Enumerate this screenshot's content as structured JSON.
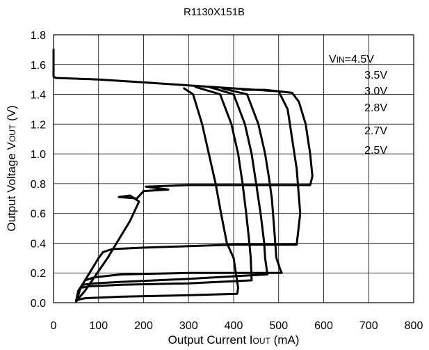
{
  "chart_data": {
    "type": "line",
    "title": "R1130X151B",
    "xlabel": "Output Current IOUT (mA)",
    "xlabel_main": "Output Current I",
    "xlabel_sub": "OUT",
    "xlabel_unit": " (mA)",
    "ylabel": "Output Voltage VOUT (V)",
    "ylabel_main": "Output Voltage V",
    "ylabel_sub": "OUT",
    "ylabel_unit": " (V)",
    "xlim": [
      0,
      800
    ],
    "ylim": [
      0,
      1.8
    ],
    "xticks": [
      "0",
      "100",
      "200",
      "300",
      "400",
      "500",
      "600",
      "700",
      "800"
    ],
    "yticks": [
      "0.0",
      "0.2",
      "0.4",
      "0.6",
      "0.8",
      "1.0",
      "1.2",
      "1.4",
      "1.6",
      "1.8"
    ],
    "grid": true,
    "legend_position": "top-right",
    "legend_title_main": "V",
    "legend_title_sub": "IN",
    "series": [
      {
        "name": "4.5V",
        "x": [
          0,
          0,
          5,
          100,
          200,
          300,
          400,
          500,
          530,
          545,
          560,
          570,
          575,
          570,
          555,
          400,
          300,
          205,
          255,
          200,
          185,
          145,
          170,
          190,
          170,
          120,
          70,
          50
        ],
        "y": [
          1.7,
          1.52,
          1.51,
          1.5,
          1.48,
          1.46,
          1.44,
          1.42,
          1.41,
          1.35,
          1.2,
          1.0,
          0.85,
          0.79,
          0.79,
          0.79,
          0.79,
          0.78,
          0.76,
          0.75,
          0.7,
          0.71,
          0.72,
          0.68,
          0.55,
          0.3,
          0.08,
          0.01
        ]
      },
      {
        "name": "3.5V",
        "x": [
          420,
          470,
          500,
          520,
          530,
          540,
          548,
          540,
          400,
          200,
          130,
          110,
          100,
          90,
          80,
          70,
          60,
          55,
          50
        ],
        "y": [
          1.43,
          1.43,
          1.42,
          1.3,
          1.1,
          0.9,
          0.6,
          0.39,
          0.39,
          0.37,
          0.36,
          0.34,
          0.3,
          0.25,
          0.2,
          0.15,
          0.1,
          0.05,
          0.01
        ]
      },
      {
        "name": "3.0V",
        "x": [
          375,
          430,
          455,
          470,
          478,
          485,
          490,
          495,
          505,
          507,
          300,
          150,
          90,
          70,
          55,
          50
        ],
        "y": [
          1.44,
          1.4,
          1.2,
          1.0,
          0.85,
          0.7,
          0.5,
          0.3,
          0.21,
          0.2,
          0.2,
          0.19,
          0.17,
          0.15,
          0.08,
          0.01
        ]
      },
      {
        "name": "2.8V",
        "x": [
          345,
          400,
          425,
          440,
          450,
          460,
          468,
          470,
          475,
          300,
          150,
          90,
          65,
          55,
          50
        ],
        "y": [
          1.45,
          1.4,
          1.2,
          1.0,
          0.8,
          0.6,
          0.4,
          0.3,
          0.19,
          0.16,
          0.14,
          0.13,
          0.12,
          0.08,
          0.01
        ]
      },
      {
        "name": "2.7V",
        "x": [
          315,
          370,
          395,
          410,
          420,
          428,
          435,
          438,
          440,
          300,
          150,
          80,
          60,
          55,
          50
        ],
        "y": [
          1.45,
          1.4,
          1.2,
          1.0,
          0.8,
          0.6,
          0.4,
          0.3,
          0.15,
          0.13,
          0.12,
          0.11,
          0.1,
          0.06,
          0.01
        ]
      },
      {
        "name": "2.5V",
        "x": [
          290,
          310,
          330,
          345,
          360,
          372,
          385,
          400,
          405,
          410,
          408,
          300,
          150,
          70,
          55,
          50
        ],
        "y": [
          1.44,
          1.4,
          1.2,
          1.0,
          0.8,
          0.6,
          0.4,
          0.3,
          0.2,
          0.1,
          0.06,
          0.05,
          0.04,
          0.03,
          0.02,
          0.01
        ]
      }
    ]
  }
}
